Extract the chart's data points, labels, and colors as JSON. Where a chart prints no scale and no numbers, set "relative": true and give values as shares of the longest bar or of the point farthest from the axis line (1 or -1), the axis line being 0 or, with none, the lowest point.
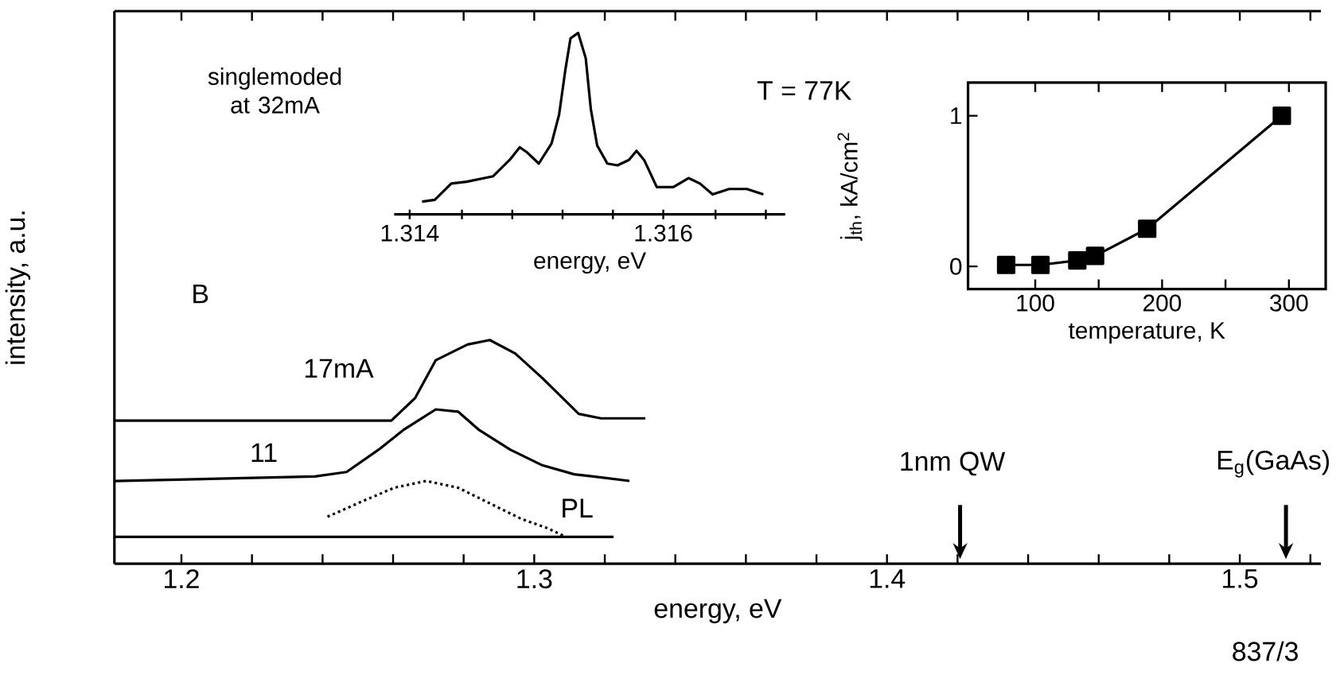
{
  "chart_data": [
    {
      "type": "line",
      "relative": true,
      "xlabel": "energy, eV",
      "ylabel": "intensity, a.u.",
      "xlim": [
        1.181,
        1.523
      ],
      "xticks": [
        1.2,
        {
          "value": 1.22,
          "label": null
        },
        {
          "value": 1.24,
          "label": null
        },
        {
          "value": 1.26,
          "label": null
        },
        {
          "value": 1.28,
          "label": null
        },
        1.3,
        {
          "value": 1.32,
          "label": null
        },
        {
          "value": 1.34,
          "label": null
        },
        {
          "value": 1.36,
          "label": null
        },
        {
          "value": 1.38,
          "label": null
        },
        1.4,
        {
          "value": 1.42,
          "label": null
        },
        {
          "value": 1.44,
          "label": null
        },
        {
          "value": 1.46,
          "label": null
        },
        {
          "value": 1.48,
          "label": null
        },
        1.5,
        {
          "value": 1.52,
          "label": null
        }
      ],
      "series": [
        {
          "name": "17mA",
          "color": "#000000",
          "line_style": "solid",
          "x": [
            1.1811,
            1.2595,
            1.2662,
            1.2721,
            1.2811,
            1.2874,
            1.2946,
            1.3023,
            1.3081,
            1.3126,
            1.3189,
            1.3315
          ],
          "values": [
            0.64,
            0.64,
            0.74,
            0.91,
            0.98,
            1,
            0.94,
            0.83,
            0.74,
            0.67,
            0.65,
            0.65
          ]
        },
        {
          "name": "11",
          "color": "#000000",
          "line_style": "solid",
          "x": [
            1.1811,
            1.2378,
            1.2468,
            1.2559,
            1.2631,
            1.2721,
            1.2784,
            1.2842,
            1.2932,
            1.3023,
            1.3113,
            1.3167,
            1.327
          ],
          "values": [
            0.37,
            0.39,
            0.41,
            0.51,
            0.6,
            0.69,
            0.68,
            0.6,
            0.51,
            0.44,
            0.4,
            0.39,
            0.37
          ]
        },
        {
          "name": "PL",
          "color": "#000000",
          "line_style": "dotted",
          "x": [
            1.2414,
            1.2514,
            1.2604,
            1.2694,
            1.2784,
            1.2874,
            1.2964,
            1.3036,
            1.309
          ],
          "values": [
            0.21,
            0.28,
            0.34,
            0.37,
            0.34,
            0.27,
            0.2,
            0.16,
            0.12
          ]
        },
        {
          "color": "#000000",
          "line_style": "solid",
          "x": [
            1.1811,
            1.3225
          ],
          "values": [
            0.12,
            0.12
          ]
        }
      ],
      "annotations": [
        "B",
        "T = 77K",
        "1nm QW",
        "E$_{g}$(GaAs)",
        "837/3"
      ]
    },
    {
      "type": "line",
      "relative": true,
      "title": "singlemoded at 32mA",
      "xlabel": "energy, eV",
      "xlim": [
        1.31388,
        1.31695
      ],
      "xticks": [
        1.314,
        {
          "value": 1.3144,
          "label": null
        },
        {
          "value": 1.3148,
          "label": null
        },
        {
          "value": 1.3152,
          "label": null
        },
        {
          "value": 1.3156,
          "label": null
        },
        1.316,
        {
          "value": 1.3164,
          "label": null
        },
        {
          "value": 1.3168,
          "label": null
        }
      ],
      "color": "#000000",
      "x": [
        1.3141,
        1.3142,
        1.31433,
        1.31445,
        1.31466,
        1.31479,
        1.31487,
        1.31493,
        1.31502,
        1.31512,
        1.31518,
        1.31523,
        1.31527,
        1.31533,
        1.31539,
        1.31543,
        1.31548,
        1.31556,
        1.31564,
        1.31573,
        1.31579,
        1.31585,
        1.31595,
        1.31608,
        1.3162,
        1.31629,
        1.31639,
        1.31652,
        1.31666,
        1.31679
      ],
      "values": [
        0.07,
        0.08,
        0.17,
        0.18,
        0.21,
        0.3,
        0.37,
        0.34,
        0.28,
        0.39,
        0.55,
        0.8,
        0.97,
        1.0,
        0.86,
        0.58,
        0.38,
        0.28,
        0.27,
        0.3,
        0.35,
        0.3,
        0.15,
        0.15,
        0.2,
        0.17,
        0.11,
        0.14,
        0.14,
        0.11
      ]
    },
    {
      "type": "line",
      "xlabel": "temperature, K",
      "ylabel": "j$_{th}$, kA/cm$^{2}$",
      "xlim": [
        47,
        329
      ],
      "ylim": [
        -0.15,
        1.22
      ],
      "xticks": [
        100,
        {
          "value": 150,
          "label": null
        },
        200,
        {
          "value": 250,
          "label": null
        },
        300
      ],
      "yticks": [
        0,
        1
      ],
      "color": "#000000",
      "marker": "square",
      "x": [
        77,
        104,
        133,
        147,
        188,
        294
      ],
      "values": [
        0.01,
        0.01,
        0.04,
        0.07,
        0.25,
        1.0
      ]
    }
  ]
}
